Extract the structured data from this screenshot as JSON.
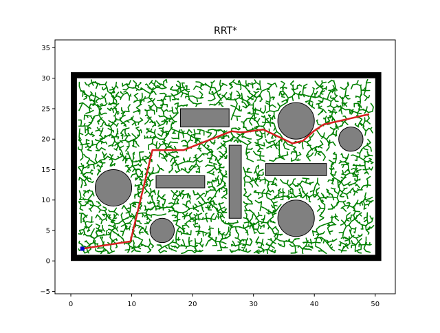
{
  "chart_data": {
    "type": "line",
    "title": "RRT*",
    "xlabel": "",
    "ylabel": "",
    "xlim": [
      -2.6,
      53.3
    ],
    "ylim": [
      -5.4,
      36.3
    ],
    "xticks": [
      0,
      10,
      20,
      30,
      40,
      50
    ],
    "yticks": [
      -5,
      0,
      5,
      10,
      15,
      20,
      25,
      30,
      35
    ],
    "grid": false,
    "colors": {
      "tree": "#008000",
      "path": "#d62020",
      "obstacle": "#808080",
      "wall": "#000000",
      "start": "#0000cc"
    },
    "boundary": {
      "x0": 0.5,
      "y0": 0.5,
      "x1": 50.5,
      "y1": 30.5,
      "thickness": 1
    },
    "rect_obstacles": [
      {
        "x0": 18,
        "y0": 22,
        "x1": 26,
        "y1": 25
      },
      {
        "x0": 14,
        "y0": 12,
        "x1": 22,
        "y1": 14
      },
      {
        "x0": 26,
        "y0": 7,
        "x1": 28,
        "y1": 19
      },
      {
        "x0": 32,
        "y0": 14,
        "x1": 42,
        "y1": 16
      }
    ],
    "circle_obstacles": [
      {
        "cx": 37,
        "cy": 23,
        "r": 3
      },
      {
        "cx": 46,
        "cy": 20,
        "r": 2
      },
      {
        "cx": 7,
        "cy": 12,
        "r": 3
      },
      {
        "cx": 15,
        "cy": 5,
        "r": 2
      },
      {
        "cx": 37,
        "cy": 7,
        "r": 3
      }
    ],
    "start": [
      1.9,
      2.0
    ],
    "goal": [
      49.0,
      24.1
    ],
    "path": [
      [
        1.9,
        2.0
      ],
      [
        9.8,
        3.2
      ],
      [
        13.4,
        18.2
      ],
      [
        18.5,
        18.2
      ],
      [
        26.4,
        21.3
      ],
      [
        28.1,
        21.1
      ],
      [
        31.6,
        21.6
      ],
      [
        36.4,
        19.3
      ],
      [
        38.1,
        19.7
      ],
      [
        39.9,
        21.3
      ],
      [
        41.5,
        22.4
      ],
      [
        49.0,
        24.1
      ]
    ]
  }
}
